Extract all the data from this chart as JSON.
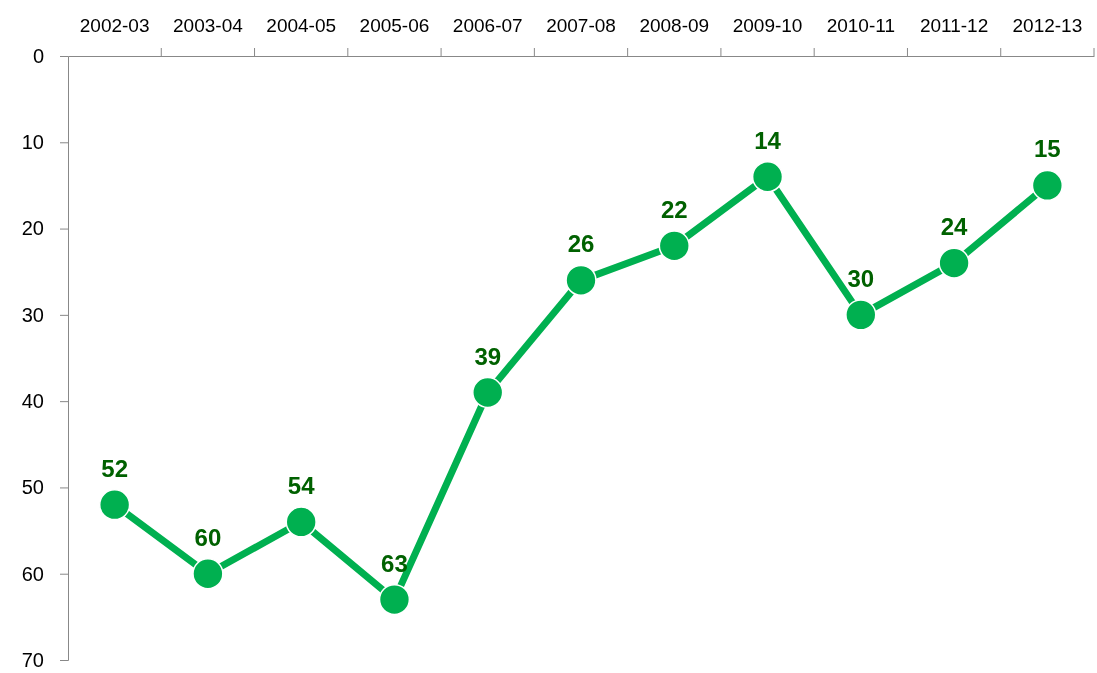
{
  "chart_data": {
    "type": "line",
    "categories": [
      "2002-03",
      "2003-04",
      "2004-05",
      "2005-06",
      "2006-07",
      "2007-08",
      "2008-09",
      "2009-10",
      "2010-11",
      "2011-12",
      "2012-13"
    ],
    "series": [
      {
        "color": "#00b050",
        "values": [
          52,
          60,
          54,
          63,
          39,
          26,
          22,
          14,
          30,
          24,
          15
        ]
      }
    ],
    "ylim": [
      70,
      0
    ],
    "yticks": [
      0,
      10,
      20,
      30,
      40,
      50,
      60,
      70
    ],
    "data_labels": true,
    "marker": "circle",
    "line_style": "solid"
  }
}
